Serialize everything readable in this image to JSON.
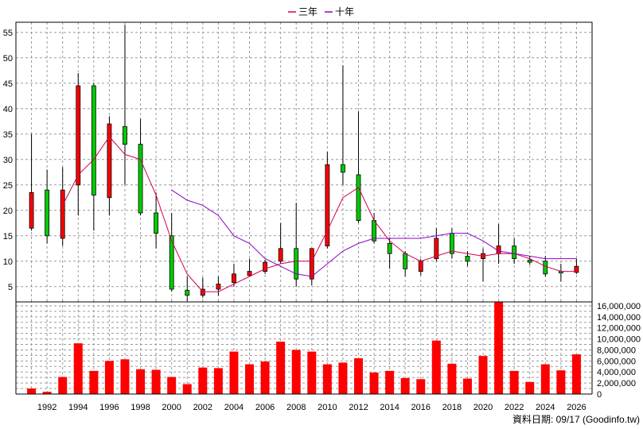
{
  "chart_data": [
    {
      "type": "candlestick",
      "legend": [
        {
          "name": "三年",
          "color": "#d40055"
        },
        {
          "name": "十年",
          "color": "#8b00c8"
        }
      ],
      "legend_position": "top-center",
      "grid": true,
      "y_ticks": [
        5,
        10,
        15,
        20,
        25,
        30,
        35,
        40,
        45,
        50,
        55
      ],
      "ylim": [
        2,
        57
      ],
      "x_ticks": [
        "1992",
        "1994",
        "1996",
        "1998",
        "2000",
        "2002",
        "2004",
        "2006",
        "2008",
        "2010",
        "2012",
        "2014",
        "2016",
        "2018",
        "2020",
        "2022",
        "2024",
        "2026"
      ],
      "candles": [
        {
          "x": 1991,
          "open": 16.5,
          "close": 23.5,
          "high": 35,
          "low": 16,
          "up": true
        },
        {
          "x": 1992,
          "open": 24,
          "close": 15,
          "high": 28,
          "low": 13.5,
          "up": false
        },
        {
          "x": 1993,
          "open": 14.5,
          "close": 24,
          "high": 28.5,
          "low": 13,
          "up": true
        },
        {
          "x": 1994,
          "open": 25,
          "close": 44.5,
          "high": 47,
          "low": 19,
          "up": true
        },
        {
          "x": 1995,
          "open": 44.5,
          "close": 23,
          "high": 45,
          "low": 16,
          "up": false
        },
        {
          "x": 1996,
          "open": 22.5,
          "close": 37,
          "high": 38.5,
          "low": 19,
          "up": true
        },
        {
          "x": 1997,
          "open": 36.5,
          "close": 33,
          "high": 56.5,
          "low": 25,
          "up": false
        },
        {
          "x": 1998,
          "open": 33,
          "close": 19.5,
          "high": 38,
          "low": 19,
          "up": false
        },
        {
          "x": 1999,
          "open": 19.5,
          "close": 15.5,
          "high": 23.5,
          "low": 12.5,
          "up": false
        },
        {
          "x": 2000,
          "open": 15,
          "close": 4.5,
          "high": 19.5,
          "low": 4,
          "up": false
        },
        {
          "x": 2001,
          "open": 4.3,
          "close": 3.3,
          "high": 7,
          "low": 2.2,
          "up": false
        },
        {
          "x": 2002,
          "open": 3.3,
          "close": 4.5,
          "high": 6.8,
          "low": 2.8,
          "up": true
        },
        {
          "x": 2003,
          "open": 4.5,
          "close": 5.5,
          "high": 7,
          "low": 3.2,
          "up": true
        },
        {
          "x": 2004,
          "open": 5.8,
          "close": 7.5,
          "high": 9.5,
          "low": 5,
          "up": true
        },
        {
          "x": 2005,
          "open": 7.2,
          "close": 8,
          "high": 10.5,
          "low": 7,
          "up": true
        },
        {
          "x": 2006,
          "open": 8,
          "close": 9.8,
          "high": 10.3,
          "low": 7.5,
          "up": true
        },
        {
          "x": 2007,
          "open": 10,
          "close": 12.5,
          "high": 17.5,
          "low": 9.5,
          "up": true
        },
        {
          "x": 2008,
          "open": 12.5,
          "close": 6.5,
          "high": 21.5,
          "low": 5,
          "up": false
        },
        {
          "x": 2009,
          "open": 6.5,
          "close": 12.5,
          "high": 12.5,
          "low": 5.3,
          "up": true
        },
        {
          "x": 2010,
          "open": 13,
          "close": 29,
          "high": 31.5,
          "low": 12.5,
          "up": true
        },
        {
          "x": 2011,
          "open": 29,
          "close": 27.5,
          "high": 48.5,
          "low": 25,
          "up": false
        },
        {
          "x": 2012,
          "open": 27,
          "close": 18,
          "high": 39.5,
          "low": 17.5,
          "up": false
        },
        {
          "x": 2013,
          "open": 18,
          "close": 14,
          "high": 19.5,
          "low": 13.5,
          "up": false
        },
        {
          "x": 2014,
          "open": 13.5,
          "close": 11.5,
          "high": 14.5,
          "low": 8.5,
          "up": false
        },
        {
          "x": 2015,
          "open": 11.5,
          "close": 8.5,
          "high": 12,
          "low": 7,
          "up": false
        },
        {
          "x": 2016,
          "open": 8,
          "close": 10,
          "high": 10.5,
          "low": 7.2,
          "up": true
        },
        {
          "x": 2017,
          "open": 10.5,
          "close": 14.5,
          "high": 16.5,
          "low": 10,
          "up": true
        },
        {
          "x": 2018,
          "open": 15.5,
          "close": 11.5,
          "high": 16.5,
          "low": 10.5,
          "up": false
        },
        {
          "x": 2019,
          "open": 11,
          "close": 10,
          "high": 12,
          "low": 9,
          "up": false
        },
        {
          "x": 2020,
          "open": 10.5,
          "close": 11.5,
          "high": 12.5,
          "low": 6,
          "up": true
        },
        {
          "x": 2021,
          "open": 11.5,
          "close": 13,
          "high": 17.3,
          "low": 9.5,
          "up": true
        },
        {
          "x": 2022,
          "open": 13,
          "close": 10.5,
          "high": 14.5,
          "low": 9.5,
          "up": false
        },
        {
          "x": 2023,
          "open": 10.2,
          "close": 9.8,
          "high": 11,
          "low": 9.3,
          "up": false
        },
        {
          "x": 2024,
          "open": 10,
          "close": 7.5,
          "high": 11,
          "low": 7,
          "up": false
        },
        {
          "x": 2025,
          "open": 8,
          "close": 7.8,
          "high": 9.5,
          "low": 6,
          "up": false
        },
        {
          "x": 2026,
          "open": 7.8,
          "close": 9,
          "high": 10.5,
          "low": 7.5,
          "up": true
        }
      ],
      "series": [
        {
          "name": "三年",
          "color": "#d40055",
          "x": [
            1993,
            1994,
            1995,
            1996,
            1997,
            1998,
            1999,
            2000,
            2001,
            2002,
            2003,
            2004,
            2005,
            2006,
            2007,
            2008,
            2009,
            2010,
            2011,
            2012,
            2013,
            2014,
            2015,
            2016,
            2017,
            2018,
            2019,
            2020,
            2021,
            2022,
            2023,
            2024,
            2025,
            2026
          ],
          "values": [
            21,
            27,
            30,
            34.5,
            31,
            30,
            23,
            14,
            7.5,
            4,
            4,
            5.5,
            7,
            8.5,
            9.5,
            10,
            10,
            16,
            22.5,
            24.5,
            18,
            14,
            11.5,
            10,
            11,
            12,
            11.5,
            11,
            11.5,
            11.5,
            10.5,
            9,
            8,
            8
          ]
        },
        {
          "name": "十年",
          "color": "#8b00c8",
          "x": [
            2000,
            2001,
            2002,
            2003,
            2004,
            2005,
            2006,
            2007,
            2008,
            2009,
            2010,
            2011,
            2012,
            2013,
            2014,
            2015,
            2016,
            2017,
            2018,
            2019,
            2020,
            2021,
            2022,
            2023,
            2024,
            2025,
            2026
          ],
          "values": [
            24,
            22,
            21,
            19,
            15,
            13.5,
            10.5,
            9,
            7.5,
            7,
            9.5,
            12,
            13.5,
            14.5,
            14.5,
            14.5,
            14.5,
            15,
            15.5,
            15.5,
            14,
            12,
            11.5,
            11,
            10.5,
            10.5,
            10.5
          ]
        }
      ]
    },
    {
      "type": "bar",
      "color": "#ff0000",
      "y_ticks": [
        "0",
        "2,000,000",
        "4,000,000",
        "6,000,000",
        "8,000,000",
        "10,000,000",
        "12,000,000",
        "14,000,000",
        "16,000,000"
      ],
      "ylim": [
        0,
        17000000
      ],
      "x": [
        1991,
        1992,
        1993,
        1994,
        1995,
        1996,
        1997,
        1998,
        1999,
        2000,
        2001,
        2002,
        2003,
        2004,
        2005,
        2006,
        2007,
        2008,
        2009,
        2010,
        2011,
        2012,
        2013,
        2014,
        2015,
        2016,
        2017,
        2018,
        2019,
        2020,
        2021,
        2022,
        2023,
        2024,
        2025,
        2026
      ],
      "values": [
        1000000,
        400000,
        3100000,
        9200000,
        4200000,
        6000000,
        6300000,
        4500000,
        4400000,
        3100000,
        1800000,
        4800000,
        4700000,
        7700000,
        5400000,
        5900000,
        9500000,
        8000000,
        7700000,
        5400000,
        5700000,
        6500000,
        3900000,
        4200000,
        2900000,
        2700000,
        9700000,
        5500000,
        2800000,
        6900000,
        16700000,
        4200000,
        2200000,
        5400000,
        4300000,
        7200000
      ]
    }
  ],
  "footer": "資料日期: 09/17  (Goodinfo.tw)"
}
